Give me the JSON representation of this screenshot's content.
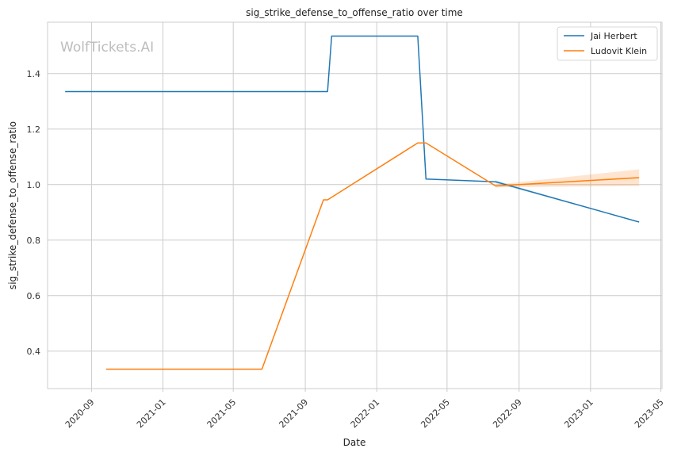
{
  "chart_data": {
    "type": "line",
    "title": "sig_strike_defense_to_offense_ratio over time",
    "xlabel": "Date",
    "ylabel": "sig_strike_defense_to_offense_ratio",
    "watermark": "WolfTickets.AI",
    "x_ticks": [
      "2020-09",
      "2021-01",
      "2021-05",
      "2021-09",
      "2022-01",
      "2022-05",
      "2022-09",
      "2023-01",
      "2023-05"
    ],
    "y_ticks": [
      "0.4",
      "0.6",
      "0.8",
      "1.0",
      "1.2",
      "1.4"
    ],
    "y_tick_values": [
      0.4,
      0.6,
      0.8,
      1.0,
      1.2,
      1.4
    ],
    "xlim": [
      "2020-06-18",
      "2023-05-03"
    ],
    "ylim": [
      0.265,
      1.585
    ],
    "grid": true,
    "legend_position": "top-right",
    "series": [
      {
        "name": "Jai Herbert",
        "color": "#1f77b4",
        "x": [
          "2020-07-18",
          "2021-10-09",
          "2021-10-16",
          "2022-03-12",
          "2022-03-26",
          "2022-07-23",
          "2023-03-25"
        ],
        "y": [
          1.335,
          1.335,
          1.535,
          1.535,
          1.02,
          1.01,
          0.865
        ],
        "band": {
          "x": [
            "2022-07-23",
            "2023-03-25"
          ],
          "lower": [
            1.005,
            0.865
          ],
          "upper": [
            1.015,
            0.865
          ]
        }
      },
      {
        "name": "Ludovit Klein",
        "color": "#ff7f0e",
        "x": [
          "2020-09-26",
          "2021-06-19",
          "2021-10-02",
          "2021-10-09",
          "2022-03-12",
          "2022-03-26",
          "2022-07-23",
          "2023-03-25"
        ],
        "y": [
          0.335,
          0.335,
          0.945,
          0.945,
          1.15,
          1.15,
          0.995,
          1.025
        ],
        "band": {
          "x": [
            "2022-07-23",
            "2023-03-25"
          ],
          "lower": [
            0.99,
            0.995
          ],
          "upper": [
            1.0,
            1.055
          ]
        }
      }
    ]
  }
}
